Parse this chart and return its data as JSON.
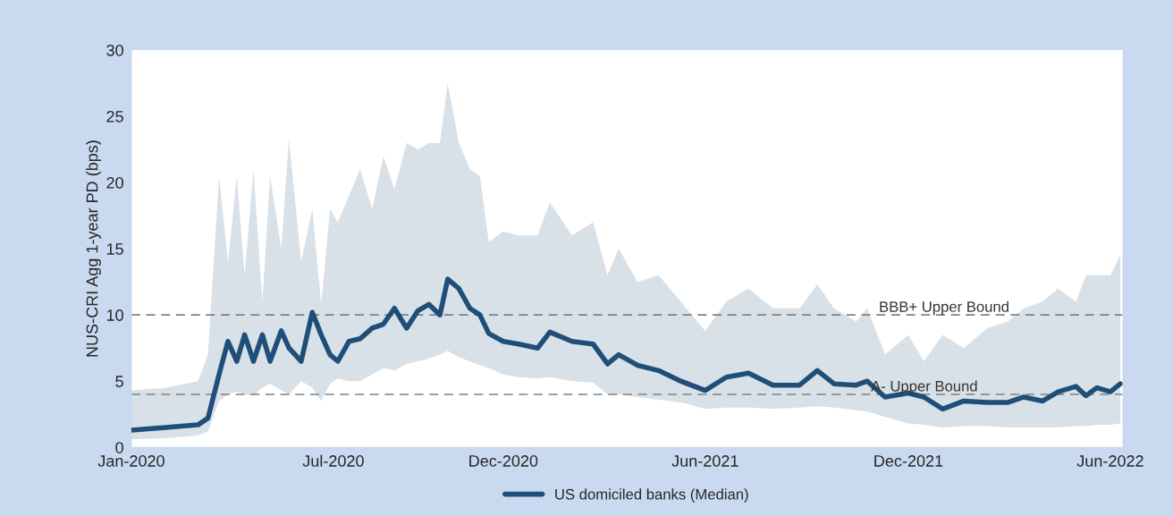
{
  "chart_data": {
    "type": "line",
    "ylabel": "NUS-CRI Agg 1-year PD (bps)",
    "x": [
      "2020-01-01",
      "2020-02-01",
      "2020-03-01",
      "2020-03-10",
      "2020-03-20",
      "2020-03-28",
      "2020-04-05",
      "2020-04-12",
      "2020-04-20",
      "2020-04-28",
      "2020-05-05",
      "2020-05-15",
      "2020-05-22",
      "2020-06-02",
      "2020-06-12",
      "2020-06-20",
      "2020-06-28",
      "2020-07-05",
      "2020-07-15",
      "2020-07-25",
      "2020-08-05",
      "2020-08-15",
      "2020-08-25",
      "2020-09-05",
      "2020-09-15",
      "2020-09-25",
      "2020-10-05",
      "2020-10-12",
      "2020-10-22",
      "2020-11-01",
      "2020-11-10",
      "2020-11-18",
      "2020-12-01",
      "2020-12-15",
      "2021-01-01",
      "2021-01-12",
      "2021-02-01",
      "2021-02-20",
      "2021-03-05",
      "2021-03-15",
      "2021-04-01",
      "2021-04-20",
      "2021-05-10",
      "2021-06-01",
      "2021-06-20",
      "2021-07-10",
      "2021-08-01",
      "2021-08-25",
      "2021-09-10",
      "2021-09-25",
      "2021-10-15",
      "2021-10-25",
      "2021-11-10",
      "2021-12-01",
      "2021-12-15",
      "2022-01-01",
      "2022-01-20",
      "2022-02-10",
      "2022-03-01",
      "2022-03-15",
      "2022-04-01",
      "2022-04-15",
      "2022-05-01",
      "2022-05-10",
      "2022-05-20",
      "2022-06-01",
      "2022-06-10"
    ],
    "series": [
      {
        "name": "US domiciled banks (Median)",
        "color": "#1f4e79",
        "values": [
          1.3,
          1.5,
          1.7,
          2.2,
          5.5,
          8.0,
          6.5,
          8.5,
          6.5,
          8.5,
          6.5,
          8.8,
          7.5,
          6.5,
          10.2,
          8.5,
          7.0,
          6.5,
          8.0,
          8.2,
          9.0,
          9.3,
          10.5,
          9.0,
          10.3,
          10.8,
          10.0,
          12.7,
          12.0,
          10.5,
          10.0,
          8.6,
          8.0,
          7.8,
          7.5,
          8.7,
          8.0,
          7.8,
          6.3,
          7.0,
          6.2,
          5.8,
          5.0,
          4.3,
          5.3,
          5.6,
          4.7,
          4.7,
          5.8,
          4.8,
          4.7,
          5.0,
          3.8,
          4.1,
          3.8,
          2.9,
          3.5,
          3.4,
          3.4,
          3.8,
          3.5,
          4.2,
          4.6,
          3.9,
          4.5,
          4.2,
          4.8
        ],
        "lower": [
          0.6,
          0.7,
          0.9,
          1.2,
          3.5,
          4.0,
          4.2,
          4.0,
          3.9,
          4.5,
          4.8,
          4.3,
          4.0,
          5.0,
          4.5,
          3.5,
          4.8,
          5.2,
          5.0,
          5.0,
          5.5,
          6.0,
          5.8,
          6.3,
          6.5,
          6.7,
          7.0,
          7.3,
          6.8,
          6.5,
          6.2,
          6.0,
          5.5,
          5.3,
          5.2,
          5.3,
          5.0,
          4.9,
          4.0,
          4.0,
          3.8,
          3.6,
          3.4,
          2.9,
          3.0,
          3.0,
          2.9,
          3.0,
          3.1,
          3.0,
          2.8,
          2.7,
          2.3,
          1.8,
          1.7,
          1.5,
          1.6,
          1.6,
          1.5,
          1.5,
          1.5,
          1.5,
          1.6,
          1.6,
          1.7,
          1.7,
          1.8
        ],
        "upper": [
          4.3,
          4.5,
          5.0,
          7.0,
          20.5,
          14.0,
          20.5,
          13.0,
          21.0,
          11.0,
          20.5,
          15.0,
          23.3,
          14.0,
          18.0,
          10.8,
          18.0,
          17.0,
          19.0,
          21.0,
          18.0,
          22.0,
          19.5,
          23.0,
          22.5,
          23.0,
          23.0,
          27.5,
          23.0,
          21.0,
          20.5,
          15.5,
          16.3,
          16.0,
          16.0,
          18.5,
          16.0,
          17.0,
          13.0,
          15.0,
          12.5,
          13.0,
          11.0,
          8.8,
          11.0,
          12.0,
          10.5,
          10.5,
          12.3,
          10.5,
          9.5,
          10.5,
          7.0,
          8.5,
          6.5,
          8.5,
          7.5,
          9.0,
          9.5,
          10.5,
          11.0,
          12.0,
          11.0,
          13.0,
          13.0,
          13.0,
          14.5
        ]
      }
    ],
    "xlim": [
      "2020-01-01",
      "2022-06-12"
    ],
    "xticks": [
      {
        "value": "2020-01-01",
        "label": "Jan-2020"
      },
      {
        "value": "2020-07-01",
        "label": "Jul-2020"
      },
      {
        "value": "2020-12-01",
        "label": "Dec-2020"
      },
      {
        "value": "2021-06-01",
        "label": "Jun-2021"
      },
      {
        "value": "2021-12-01",
        "label": "Dec-2021"
      },
      {
        "value": "2022-06-01",
        "label": "Jun-2022"
      }
    ],
    "ylim": [
      0,
      30
    ],
    "yticks": [
      0,
      5,
      10,
      15,
      20,
      25,
      30
    ],
    "ref_lines": [
      {
        "axis": "y",
        "value": 10,
        "label": "BBB+ Upper Bound",
        "color": "#808080",
        "line_style": "dashed"
      },
      {
        "axis": "y",
        "value": 4,
        "label": "A- Upper Bound",
        "color": "#808080",
        "line_style": "dashed"
      }
    ],
    "grid": false,
    "legend": "bottom",
    "line_style": "solid",
    "marker": "none"
  }
}
